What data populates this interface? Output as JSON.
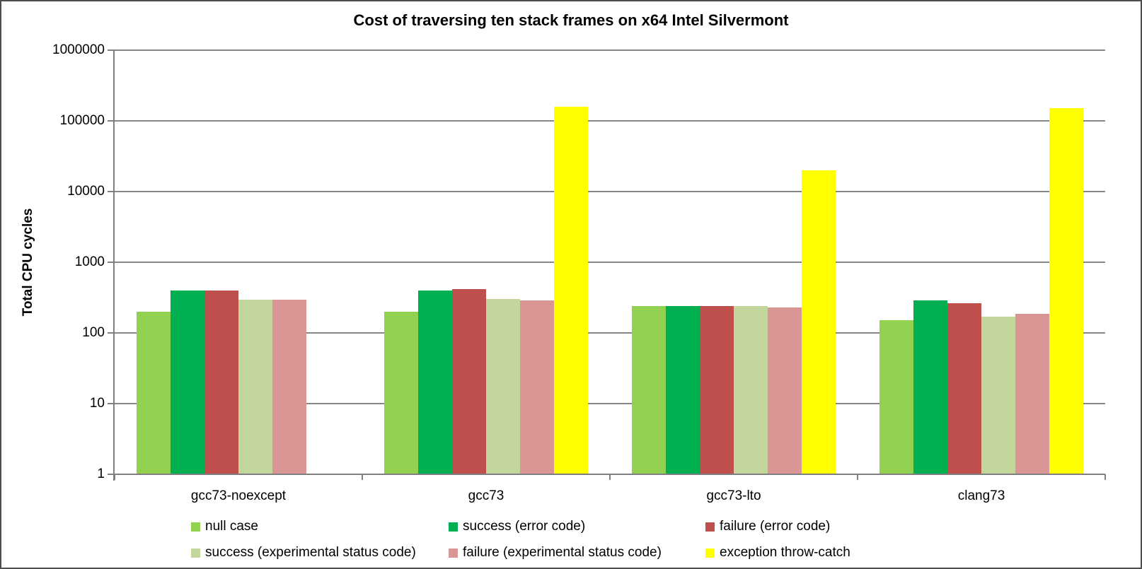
{
  "title": "Cost of traversing ten stack frames on x64 Intel Silvermont",
  "y_axis": {
    "label": "Total CPU cycles",
    "ticks": [
      "1000000",
      "100000",
      "10000",
      "1000",
      "100",
      "10",
      "1"
    ]
  },
  "x_axis": {
    "categories": [
      "gcc73-noexcept",
      "gcc73",
      "gcc73-lto",
      "clang73"
    ]
  },
  "chart_data": {
    "type": "bar",
    "title": "Cost of traversing ten stack frames on x64 Intel Silvermont",
    "xlabel": "",
    "ylabel": "Total CPU cycles",
    "y_scale": "log10",
    "ylim": [
      1,
      1000000
    ],
    "y_ticks": [
      1,
      10,
      100,
      1000,
      10000,
      100000,
      1000000
    ],
    "grid": true,
    "legend_position": "bottom",
    "categories": [
      "gcc73-noexcept",
      "gcc73",
      "gcc73-lto",
      "clang73"
    ],
    "series": [
      {
        "name": "null case",
        "color": "#92D050",
        "values": [
          200,
          200,
          240,
          150
        ]
      },
      {
        "name": "success (error code)",
        "color": "#00B050",
        "values": [
          400,
          400,
          240,
          290
        ]
      },
      {
        "name": "failure (error code)",
        "color": "#C0504D",
        "values": [
          400,
          415,
          240,
          265
        ]
      },
      {
        "name": "success (experimental status code)",
        "color": "#C3D69B",
        "values": [
          295,
          300,
          240,
          170
        ]
      },
      {
        "name": "failure (experimental status code)",
        "color": "#D99694",
        "values": [
          295,
          290,
          230,
          185
        ]
      },
      {
        "name": "exception throw-catch",
        "color": "#FFFF00",
        "values": [
          null,
          160000,
          20000,
          150000
        ]
      }
    ]
  },
  "style": {
    "gridline_color": "#878787",
    "axis_color": "#7f7f7f"
  }
}
